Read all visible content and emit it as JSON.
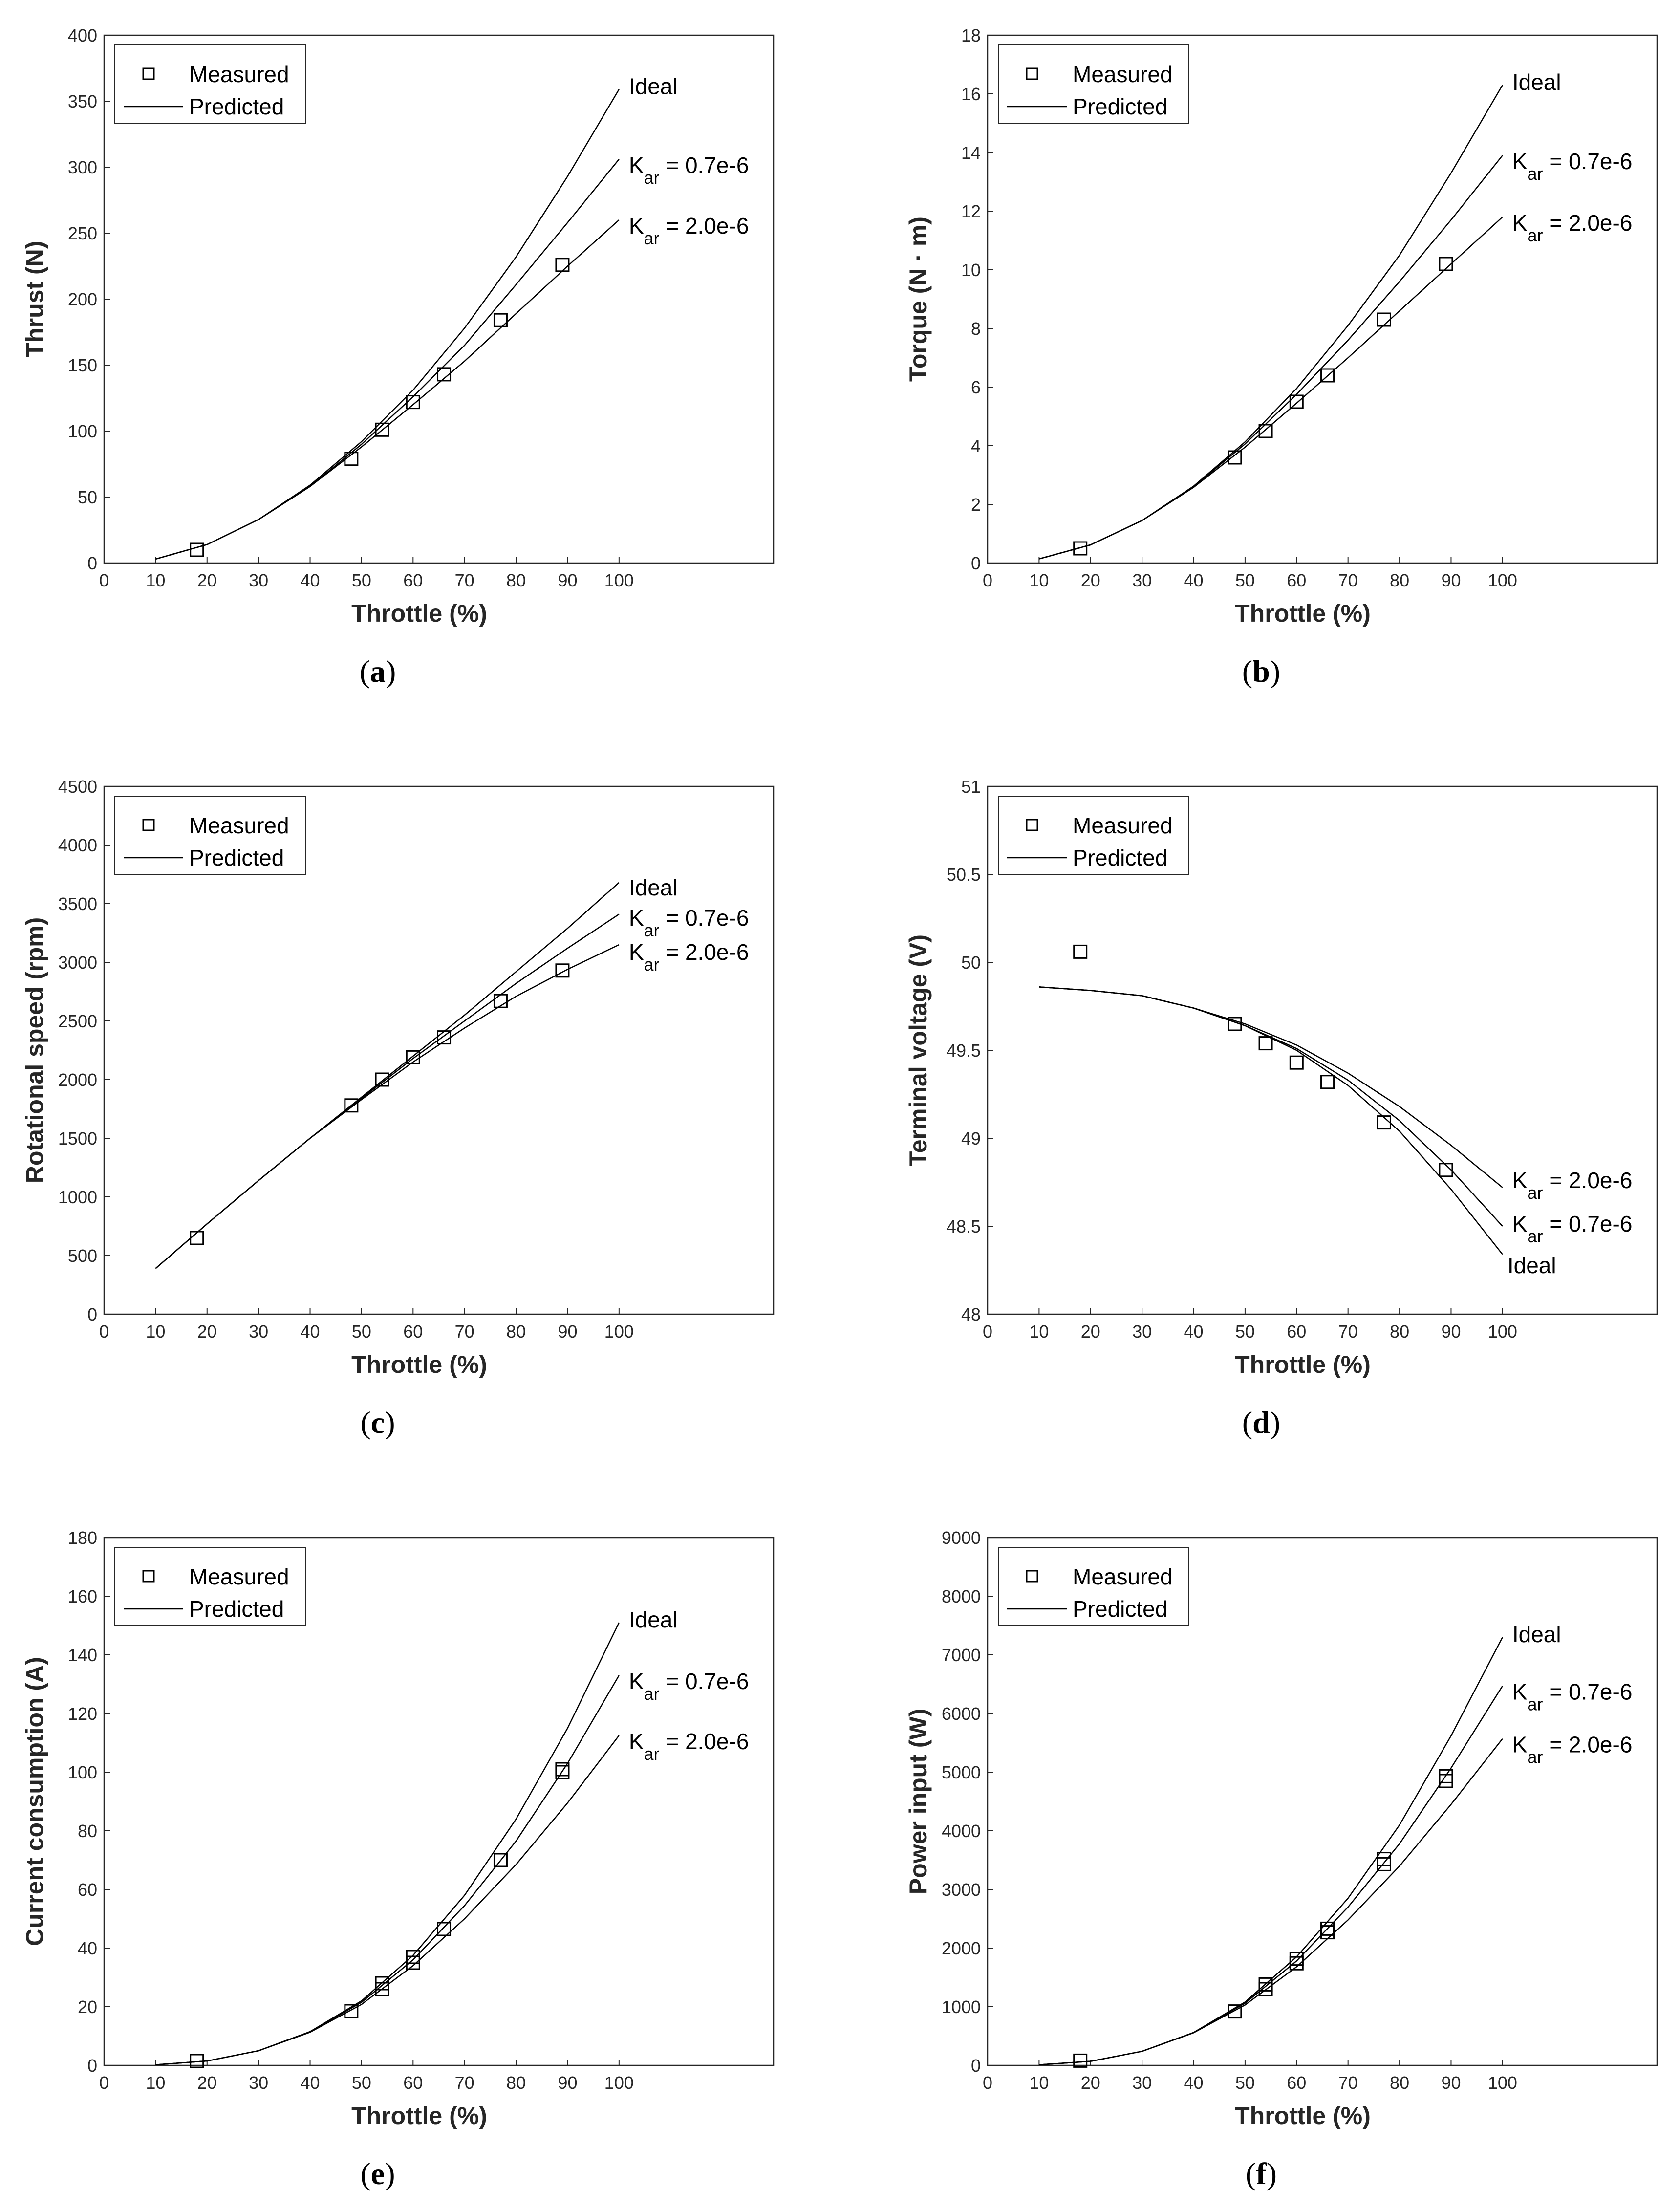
{
  "colors": {
    "background": "#ffffff",
    "axis": "#262626",
    "grid": "#e2e2e2",
    "series": "#000000"
  },
  "chart_data": [
    {
      "panel": "(a)",
      "type": "line",
      "ylabel": "Thrust (N)",
      "xlabel": "Throttle (%)",
      "xlim": [
        0,
        130
      ],
      "xticks": [
        0,
        10,
        20,
        30,
        40,
        50,
        60,
        70,
        80,
        90,
        100
      ],
      "ylim": [
        0,
        400
      ],
      "yticks": [
        0,
        50,
        100,
        150,
        200,
        250,
        300,
        350,
        400
      ],
      "legend": {
        "position": "top-left",
        "measured": "Measured",
        "predicted": "Predicted"
      },
      "measured": {
        "x": [
          18,
          48,
          54,
          60,
          66,
          77,
          89
        ],
        "y": [
          10,
          79,
          101,
          122,
          143,
          184,
          226
        ]
      },
      "series": [
        {
          "name": "Ideal",
          "label": "Ideal",
          "x": [
            10,
            20,
            30,
            40,
            50,
            60,
            70,
            80,
            90,
            100
          ],
          "y": [
            3,
            14,
            33,
            59,
            92,
            131,
            178,
            232,
            293,
            359
          ]
        },
        {
          "name": "Kar = 0.7e-6",
          "label": "K",
          "sub": "ar",
          "suffix": " = 0.7e-6",
          "x": [
            10,
            20,
            30,
            40,
            50,
            60,
            70,
            80,
            90,
            100
          ],
          "y": [
            3,
            14,
            33,
            58,
            90,
            126,
            165,
            211,
            258,
            306
          ]
        },
        {
          "name": "Kar = 2.0e-6",
          "label": "K",
          "sub": "ar",
          "suffix": " = 2.0e-6",
          "x": [
            10,
            20,
            30,
            40,
            50,
            60,
            70,
            80,
            90,
            100
          ],
          "y": [
            3,
            14,
            33,
            58,
            88,
            120,
            153,
            189,
            225,
            260
          ]
        }
      ]
    },
    {
      "panel": "(b)",
      "type": "line",
      "ylabel": "Torque (N · m)",
      "xlabel": "Throttle (%)",
      "xlim": [
        0,
        130
      ],
      "xticks": [
        0,
        10,
        20,
        30,
        40,
        50,
        60,
        70,
        80,
        90,
        100
      ],
      "ylim": [
        0,
        18
      ],
      "yticks": [
        0,
        2,
        4,
        6,
        8,
        10,
        12,
        14,
        16,
        18
      ],
      "legend": {
        "position": "top-left",
        "measured": "Measured",
        "predicted": "Predicted"
      },
      "measured": {
        "x": [
          18,
          48,
          54,
          60,
          66,
          77,
          89
        ],
        "y": [
          0.5,
          3.6,
          4.5,
          5.5,
          6.4,
          8.3,
          10.2
        ]
      },
      "series": [
        {
          "name": "Ideal",
          "label": "Ideal",
          "x": [
            10,
            20,
            30,
            40,
            50,
            60,
            70,
            80,
            90,
            100
          ],
          "y": [
            0.14,
            0.62,
            1.45,
            2.62,
            4.13,
            5.95,
            8.1,
            10.5,
            13.3,
            16.3
          ]
        },
        {
          "name": "Kar = 0.7e-6",
          "label": "K",
          "sub": "ar",
          "suffix": " = 0.7e-6",
          "x": [
            10,
            20,
            30,
            40,
            50,
            60,
            70,
            80,
            90,
            100
          ],
          "y": [
            0.14,
            0.62,
            1.45,
            2.6,
            4.06,
            5.75,
            7.6,
            9.6,
            11.7,
            13.9
          ]
        },
        {
          "name": "Kar = 2.0e-6",
          "label": "K",
          "sub": "ar",
          "suffix": " = 2.0e-6",
          "x": [
            10,
            20,
            30,
            40,
            50,
            60,
            70,
            80,
            90,
            100
          ],
          "y": [
            0.14,
            0.62,
            1.45,
            2.58,
            3.95,
            5.45,
            7.0,
            8.6,
            10.2,
            11.8
          ]
        }
      ]
    },
    {
      "panel": "(c)",
      "type": "line",
      "ylabel": "Rotational speed (rpm)",
      "xlabel": "Throttle (%)",
      "xlim": [
        0,
        130
      ],
      "xticks": [
        0,
        10,
        20,
        30,
        40,
        50,
        60,
        70,
        80,
        90,
        100
      ],
      "ylim": [
        0,
        4500
      ],
      "yticks": [
        0,
        500,
        1000,
        1500,
        2000,
        2500,
        3000,
        3500,
        4000,
        4500
      ],
      "legend": {
        "position": "top-left",
        "measured": "Measured",
        "predicted": "Predicted"
      },
      "measured": {
        "x": [
          18,
          48,
          54,
          60,
          66,
          77,
          89
        ],
        "y": [
          650,
          1780,
          2000,
          2190,
          2360,
          2670,
          2930
        ]
      },
      "series": [
        {
          "name": "Ideal",
          "label": "Ideal",
          "x": [
            10,
            20,
            30,
            40,
            50,
            60,
            70,
            80,
            90,
            100
          ],
          "y": [
            390,
            770,
            1140,
            1500,
            1850,
            2200,
            2550,
            2920,
            3290,
            3680
          ]
        },
        {
          "name": "Kar = 0.7e-6",
          "label": "K",
          "sub": "ar",
          "suffix": " = 0.7e-6",
          "x": [
            10,
            20,
            30,
            40,
            50,
            60,
            70,
            80,
            90,
            100
          ],
          "y": [
            390,
            770,
            1140,
            1500,
            1840,
            2180,
            2500,
            2820,
            3120,
            3410
          ]
        },
        {
          "name": "Kar = 2.0e-6",
          "label": "K",
          "sub": "ar",
          "suffix": " = 2.0e-6",
          "x": [
            10,
            20,
            30,
            40,
            50,
            60,
            70,
            80,
            90,
            100
          ],
          "y": [
            390,
            770,
            1140,
            1500,
            1830,
            2150,
            2440,
            2710,
            2940,
            3150
          ]
        }
      ]
    },
    {
      "panel": "(d)",
      "type": "line",
      "ylabel": "Terminal voltage (V)",
      "xlabel": "Throttle (%)",
      "xlim": [
        0,
        130
      ],
      "xticks": [
        0,
        10,
        20,
        30,
        40,
        50,
        60,
        70,
        80,
        90,
        100
      ],
      "ylim": [
        48,
        51
      ],
      "yticks": [
        48,
        48.5,
        49,
        49.5,
        50,
        50.5,
        51
      ],
      "legend": {
        "position": "top-left",
        "measured": "Measured",
        "predicted": "Predicted"
      },
      "measured": {
        "x": [
          18,
          48,
          54,
          60,
          66,
          77,
          89
        ],
        "y": [
          50.06,
          49.65,
          49.54,
          49.43,
          49.32,
          49.09,
          48.82
        ]
      },
      "series": [
        {
          "name": "Ideal",
          "label": "Ideal",
          "x": [
            10,
            20,
            30,
            40,
            50,
            60,
            70,
            80,
            90,
            100
          ],
          "y": [
            49.86,
            49.84,
            49.81,
            49.74,
            49.64,
            49.5,
            49.3,
            49.04,
            48.71,
            48.34
          ]
        },
        {
          "name": "Kar = 0.7e-6",
          "label": "K",
          "sub": "ar",
          "suffix": " = 0.7e-6",
          "x": [
            10,
            20,
            30,
            40,
            50,
            60,
            70,
            80,
            90,
            100
          ],
          "y": [
            49.86,
            49.84,
            49.81,
            49.74,
            49.64,
            49.51,
            49.33,
            49.1,
            48.82,
            48.5
          ]
        },
        {
          "name": "Kar = 2.0e-6",
          "label": "K",
          "sub": "ar",
          "suffix": " = 2.0e-6",
          "x": [
            10,
            20,
            30,
            40,
            50,
            60,
            70,
            80,
            90,
            100
          ],
          "y": [
            49.86,
            49.84,
            49.81,
            49.74,
            49.65,
            49.53,
            49.37,
            49.18,
            48.96,
            48.72
          ]
        }
      ],
      "label_order": [
        "Kar = 2.0e-6",
        "Kar = 0.7e-6",
        "Ideal"
      ]
    },
    {
      "panel": "(e)",
      "type": "line",
      "ylabel": "Current consumption (A)",
      "xlabel": "Throttle (%)",
      "xlim": [
        0,
        130
      ],
      "xticks": [
        0,
        10,
        20,
        30,
        40,
        50,
        60,
        70,
        80,
        90,
        100
      ],
      "ylim": [
        0,
        180
      ],
      "yticks": [
        0,
        20,
        40,
        60,
        80,
        100,
        120,
        140,
        160,
        180
      ],
      "legend": {
        "position": "top-left",
        "measured": "Measured",
        "predicted": "Predicted"
      },
      "measured": {
        "x": [
          18,
          48,
          54,
          54,
          60,
          60,
          66,
          77,
          89,
          89
        ],
        "y": [
          1.5,
          18.5,
          26,
          28,
          35,
          37,
          46.5,
          70,
          100,
          101
        ]
      },
      "series": [
        {
          "name": "Ideal",
          "label": "Ideal",
          "x": [
            10,
            20,
            30,
            40,
            50,
            60,
            70,
            80,
            90,
            100
          ],
          "y": [
            0.2,
            1.5,
            5.0,
            11.5,
            22.0,
            37.5,
            58.0,
            84.0,
            115.0,
            151.0
          ]
        },
        {
          "name": "Kar = 0.7e-6",
          "label": "K",
          "sub": "ar",
          "suffix": " = 0.7e-6",
          "x": [
            10,
            20,
            30,
            40,
            50,
            60,
            70,
            80,
            90,
            100
          ],
          "y": [
            0.2,
            1.5,
            5.0,
            11.5,
            21.5,
            36.0,
            54.5,
            76.5,
            103.0,
            133.0
          ]
        },
        {
          "name": "Kar = 2.0e-6",
          "label": "K",
          "sub": "ar",
          "suffix": " = 2.0e-6",
          "x": [
            10,
            20,
            30,
            40,
            50,
            60,
            70,
            80,
            90,
            100
          ],
          "y": [
            0.2,
            1.5,
            5.0,
            11.3,
            20.8,
            34.0,
            50.0,
            68.5,
            89.5,
            112.5
          ]
        }
      ]
    },
    {
      "panel": "(f)",
      "type": "line",
      "ylabel": "Power input (W)",
      "xlabel": "Throttle (%)",
      "xlim": [
        0,
        130
      ],
      "xticks": [
        0,
        10,
        20,
        30,
        40,
        50,
        60,
        70,
        80,
        90,
        100
      ],
      "ylim": [
        0,
        9000
      ],
      "yticks": [
        0,
        1000,
        2000,
        3000,
        4000,
        5000,
        6000,
        7000,
        8000,
        9000
      ],
      "legend": {
        "position": "top-left",
        "measured": "Measured",
        "predicted": "Predicted"
      },
      "measured": {
        "x": [
          18,
          48,
          54,
          54,
          60,
          60,
          66,
          66,
          77,
          77,
          89,
          89
        ],
        "y": [
          80,
          920,
          1300,
          1380,
          1740,
          1820,
          2270,
          2330,
          3430,
          3520,
          4850,
          4930
        ]
      },
      "series": [
        {
          "name": "Ideal",
          "label": "Ideal",
          "x": [
            10,
            20,
            30,
            40,
            50,
            60,
            70,
            80,
            90,
            100
          ],
          "y": [
            10,
            70,
            240,
            560,
            1080,
            1850,
            2850,
            4100,
            5620,
            7300
          ]
        },
        {
          "name": "Kar = 0.7e-6",
          "label": "K",
          "sub": "ar",
          "suffix": " = 0.7e-6",
          "x": [
            10,
            20,
            30,
            40,
            50,
            60,
            70,
            80,
            90,
            100
          ],
          "y": [
            10,
            70,
            240,
            560,
            1060,
            1780,
            2700,
            3780,
            5070,
            6470
          ]
        },
        {
          "name": "Kar = 2.0e-6",
          "label": "K",
          "sub": "ar",
          "suffix": " = 2.0e-6",
          "x": [
            10,
            20,
            30,
            40,
            50,
            60,
            70,
            80,
            90,
            100
          ],
          "y": [
            10,
            70,
            240,
            555,
            1030,
            1680,
            2480,
            3400,
            4450,
            5570
          ]
        }
      ]
    }
  ]
}
